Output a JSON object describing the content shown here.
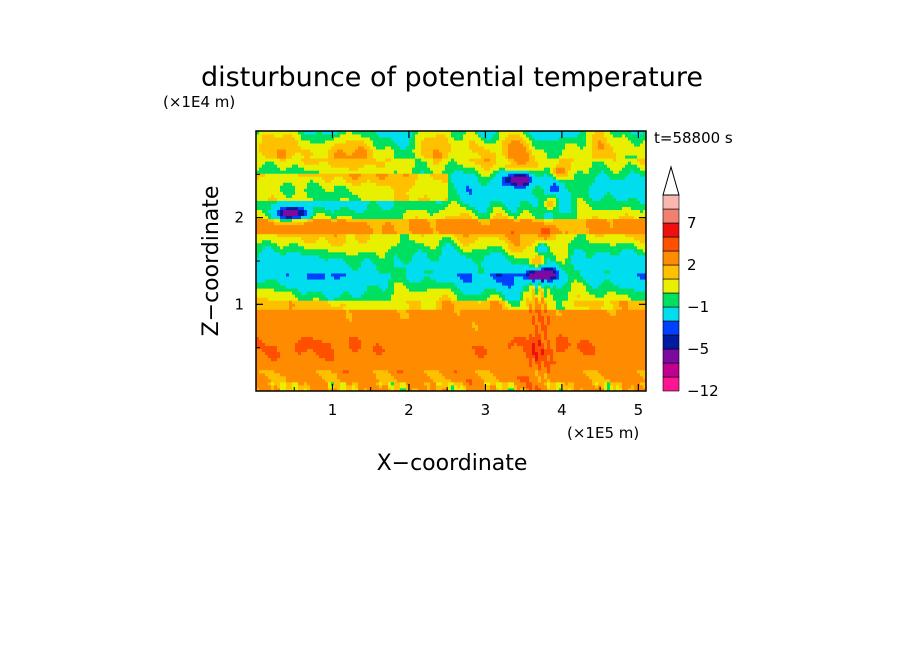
{
  "chart_data": {
    "type": "heatmap",
    "title": "disturbunce of potential temperature",
    "time_label": "t=58800 s",
    "xlabel": "X−coordinate",
    "ylabel": "Z−coordinate",
    "x_scale_label": "(×1E5 m)",
    "y_scale_label": "(×1E4 m)",
    "x_ticks": [
      "1",
      "2",
      "3",
      "4",
      "5"
    ],
    "x_tick_values": [
      1,
      2,
      3,
      4,
      5
    ],
    "y_ticks": [
      "1",
      "2"
    ],
    "y_tick_values": [
      1,
      2
    ],
    "xlim": [
      0,
      5.1
    ],
    "ylim": [
      0,
      3.0
    ],
    "colorbar": {
      "labels": [
        "7",
        "2",
        "−1",
        "−5",
        "−12"
      ],
      "label_values": [
        7,
        2,
        -1,
        -5,
        -12
      ],
      "levels": [
        -12,
        -10,
        -8,
        -5,
        -4,
        -3,
        -1,
        0,
        1,
        2,
        4,
        6,
        7,
        9,
        11
      ],
      "colors": [
        "#ff1493",
        "#c00090",
        "#7a0aa0",
        "#001aa0",
        "#0040ff",
        "#00ddee",
        "#00e060",
        "#e8f000",
        "#ffc000",
        "#ff8c00",
        "#ff5000",
        "#ee1010",
        "#f08070",
        "#f8b8b0"
      ],
      "extend": "max"
    },
    "features": [
      {
        "x": 3.45,
        "z": 2.45,
        "value": -6
      },
      {
        "x": 3.75,
        "z": 1.35,
        "value": -5
      },
      {
        "x": 0.45,
        "z": 2.05,
        "value": -6
      },
      {
        "x": 1.5,
        "z": 0.5,
        "value": 4
      },
      {
        "x": 3.7,
        "z": 0.5,
        "value": 4
      }
    ]
  }
}
